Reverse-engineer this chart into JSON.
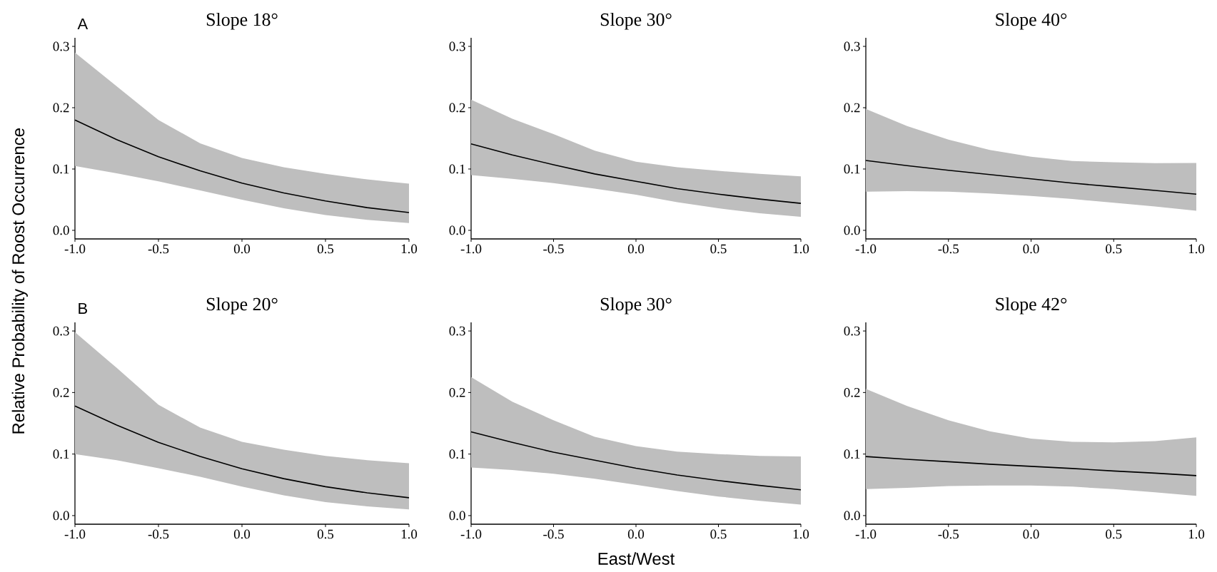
{
  "chart_data": [
    {
      "type": "line",
      "title": "Slope 18°",
      "ylabel": "Relative Probability of Roost Occurrence",
      "annotations": [
        "A"
      ],
      "x": [
        -1,
        -0.75,
        -0.5,
        -0.25,
        0,
        0.25,
        0.5,
        0.75,
        1
      ],
      "xlim": [
        -1,
        1
      ],
      "ylim": [
        -0.014,
        0.314
      ],
      "xticks": [
        {
          "value": -1,
          "label": "-1.0"
        },
        {
          "value": -0.5,
          "label": "-0.5"
        },
        {
          "value": 0,
          "label": "0.0"
        },
        {
          "value": 0.5,
          "label": "0.5"
        },
        {
          "value": 1,
          "label": "1.0"
        }
      ],
      "yticks": [
        {
          "value": 0,
          "label": "0.0"
        },
        {
          "value": 0.1,
          "label": "0.1"
        },
        {
          "value": 0.2,
          "label": "0.2"
        },
        {
          "value": 0.3,
          "label": "0.3"
        }
      ],
      "series": [
        {
          "color": "#000000",
          "values": [
            0.18,
            0.148,
            0.12,
            0.097,
            0.077,
            0.061,
            0.048,
            0.037,
            0.029
          ],
          "upper": [
            0.29,
            0.235,
            0.18,
            0.142,
            0.118,
            0.103,
            0.092,
            0.083,
            0.076
          ],
          "lower": [
            0.105,
            0.093,
            0.08,
            0.065,
            0.05,
            0.036,
            0.025,
            0.017,
            0.012
          ]
        }
      ]
    },
    {
      "type": "line",
      "title": "Slope 30°",
      "x": [
        -1,
        -0.75,
        -0.5,
        -0.25,
        0,
        0.25,
        0.5,
        0.75,
        1
      ],
      "xlim": [
        -1,
        1
      ],
      "ylim": [
        -0.014,
        0.314
      ],
      "xticks": [
        {
          "value": -1,
          "label": "-1.0"
        },
        {
          "value": -0.5,
          "label": "-0.5"
        },
        {
          "value": 0,
          "label": "0.0"
        },
        {
          "value": 0.5,
          "label": "0.5"
        },
        {
          "value": 1,
          "label": "1.0"
        }
      ],
      "yticks": [
        {
          "value": 0,
          "label": "0.0"
        },
        {
          "value": 0.1,
          "label": "0.1"
        },
        {
          "value": 0.2,
          "label": "0.2"
        },
        {
          "value": 0.3,
          "label": "0.3"
        }
      ],
      "series": [
        {
          "color": "#000000",
          "values": [
            0.141,
            0.123,
            0.107,
            0.092,
            0.08,
            0.068,
            0.059,
            0.051,
            0.044
          ],
          "upper": [
            0.213,
            0.182,
            0.157,
            0.13,
            0.112,
            0.103,
            0.097,
            0.092,
            0.088
          ],
          "lower": [
            0.09,
            0.084,
            0.077,
            0.068,
            0.058,
            0.046,
            0.036,
            0.028,
            0.022
          ]
        }
      ]
    },
    {
      "type": "line",
      "title": "Slope 40°",
      "x": [
        -1,
        -0.75,
        -0.5,
        -0.25,
        0,
        0.25,
        0.5,
        0.75,
        1
      ],
      "xlim": [
        -1,
        1
      ],
      "ylim": [
        -0.014,
        0.314
      ],
      "xticks": [
        {
          "value": -1,
          "label": "-1.0"
        },
        {
          "value": -0.5,
          "label": "-0.5"
        },
        {
          "value": 0,
          "label": "0.0"
        },
        {
          "value": 0.5,
          "label": "0.5"
        },
        {
          "value": 1,
          "label": "1.0"
        }
      ],
      "yticks": [
        {
          "value": 0,
          "label": "0.0"
        },
        {
          "value": 0.1,
          "label": "0.1"
        },
        {
          "value": 0.2,
          "label": "0.2"
        },
        {
          "value": 0.3,
          "label": "0.3"
        }
      ],
      "series": [
        {
          "color": "#000000",
          "values": [
            0.114,
            0.1055,
            0.098,
            0.091,
            0.084,
            0.077,
            0.071,
            0.065,
            0.059
          ],
          "upper": [
            0.198,
            0.17,
            0.148,
            0.131,
            0.12,
            0.113,
            0.111,
            0.1095,
            0.11
          ],
          "lower": [
            0.063,
            0.064,
            0.063,
            0.06,
            0.056,
            0.051,
            0.045,
            0.039,
            0.032
          ]
        }
      ]
    },
    {
      "type": "line",
      "title": "Slope 20°",
      "annotations": [
        "B"
      ],
      "x": [
        -1,
        -0.75,
        -0.5,
        -0.25,
        0,
        0.25,
        0.5,
        0.75,
        1
      ],
      "xlim": [
        -1,
        1
      ],
      "ylim": [
        -0.014,
        0.314
      ],
      "xticks": [
        {
          "value": -1,
          "label": "-1.0"
        },
        {
          "value": -0.5,
          "label": "-0.5"
        },
        {
          "value": 0,
          "label": "0.0"
        },
        {
          "value": 0.5,
          "label": "0.5"
        },
        {
          "value": 1,
          "label": "1.0"
        }
      ],
      "yticks": [
        {
          "value": 0,
          "label": "0.0"
        },
        {
          "value": 0.1,
          "label": "0.1"
        },
        {
          "value": 0.2,
          "label": "0.2"
        },
        {
          "value": 0.3,
          "label": "0.3"
        }
      ],
      "series": [
        {
          "color": "#000000",
          "values": [
            0.178,
            0.147,
            0.119,
            0.096,
            0.076,
            0.06,
            0.047,
            0.037,
            0.029
          ],
          "upper": [
            0.298,
            0.24,
            0.18,
            0.143,
            0.12,
            0.107,
            0.097,
            0.09,
            0.085
          ],
          "lower": [
            0.1,
            0.09,
            0.077,
            0.063,
            0.047,
            0.033,
            0.022,
            0.015,
            0.01
          ]
        }
      ]
    },
    {
      "type": "line",
      "title": "Slope 30°",
      "xlabel": "East/West",
      "x": [
        -1,
        -0.75,
        -0.5,
        -0.25,
        0,
        0.25,
        0.5,
        0.75,
        1
      ],
      "xlim": [
        -1,
        1
      ],
      "ylim": [
        -0.014,
        0.314
      ],
      "xticks": [
        {
          "value": -1,
          "label": "-1.0"
        },
        {
          "value": -0.5,
          "label": "-0.5"
        },
        {
          "value": 0,
          "label": "0.0"
        },
        {
          "value": 0.5,
          "label": "0.5"
        },
        {
          "value": 1,
          "label": "1.0"
        }
      ],
      "yticks": [
        {
          "value": 0,
          "label": "0.0"
        },
        {
          "value": 0.1,
          "label": "0.1"
        },
        {
          "value": 0.2,
          "label": "0.2"
        },
        {
          "value": 0.3,
          "label": "0.3"
        }
      ],
      "series": [
        {
          "color": "#000000",
          "values": [
            0.136,
            0.119,
            0.103,
            0.09,
            0.077,
            0.066,
            0.057,
            0.049,
            0.042
          ],
          "upper": [
            0.225,
            0.185,
            0.155,
            0.128,
            0.113,
            0.104,
            0.1,
            0.097,
            0.096
          ],
          "lower": [
            0.078,
            0.074,
            0.068,
            0.06,
            0.05,
            0.04,
            0.031,
            0.024,
            0.018
          ]
        }
      ]
    },
    {
      "type": "line",
      "title": "Slope 42°",
      "x": [
        -1,
        -0.75,
        -0.5,
        -0.25,
        0,
        0.25,
        0.5,
        0.75,
        1
      ],
      "xlim": [
        -1,
        1
      ],
      "ylim": [
        -0.014,
        0.314
      ],
      "xticks": [
        {
          "value": -1,
          "label": "-1.0"
        },
        {
          "value": -0.5,
          "label": "-0.5"
        },
        {
          "value": 0,
          "label": "0.0"
        },
        {
          "value": 0.5,
          "label": "0.5"
        },
        {
          "value": 1,
          "label": "1.0"
        }
      ],
      "yticks": [
        {
          "value": 0,
          "label": "0.0"
        },
        {
          "value": 0.1,
          "label": "0.1"
        },
        {
          "value": 0.2,
          "label": "0.2"
        },
        {
          "value": 0.3,
          "label": "0.3"
        }
      ],
      "series": [
        {
          "color": "#000000",
          "values": [
            0.096,
            0.0915,
            0.0875,
            0.0835,
            0.08,
            0.0765,
            0.0725,
            0.069,
            0.065
          ],
          "upper": [
            0.206,
            0.178,
            0.155,
            0.137,
            0.125,
            0.12,
            0.119,
            0.121,
            0.127
          ],
          "lower": [
            0.043,
            0.045,
            0.048,
            0.049,
            0.049,
            0.047,
            0.043,
            0.038,
            0.032
          ]
        }
      ]
    }
  ]
}
